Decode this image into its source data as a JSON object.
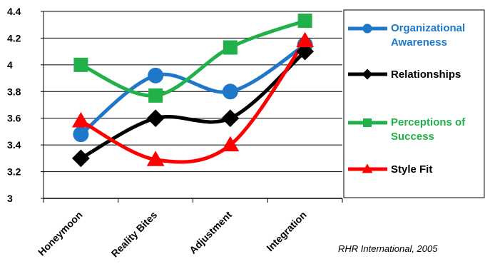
{
  "chart_data": {
    "type": "line",
    "categories": [
      "Honeymoon",
      "Reality Bites",
      "Adjustment",
      "Integration"
    ],
    "ylim": [
      3,
      4.4
    ],
    "y_ticks": [
      "3",
      "3.2",
      "3.4",
      "3.6",
      "3.8",
      "4",
      "4.2",
      "4.4"
    ],
    "grid": true,
    "smooth": true,
    "legend_position": "right",
    "series": [
      {
        "name": "Organizational Awareness",
        "name_lines": [
          "Organizational",
          "Awareness"
        ],
        "color": "#1f77c9",
        "marker": "circle",
        "values": [
          3.48,
          3.92,
          3.8,
          4.15
        ]
      },
      {
        "name": "Relationships",
        "name_lines": [
          "Relationships"
        ],
        "color": "#000000",
        "label_color": "#000000",
        "marker": "diamond",
        "values": [
          3.3,
          3.6,
          3.6,
          4.1
        ]
      },
      {
        "name": "Perceptions of Success",
        "name_lines": [
          "Perceptions of",
          "Success"
        ],
        "color": "#22b04b",
        "marker": "square",
        "values": [
          4.0,
          3.77,
          4.13,
          4.33
        ]
      },
      {
        "name": "Style Fit",
        "name_lines": [
          "Style Fit"
        ],
        "color": "#ff0000",
        "label_color": "#000000",
        "marker": "triangle",
        "values": [
          3.58,
          3.29,
          3.4,
          4.18
        ]
      }
    ],
    "annotation": "RHR International, 2005"
  }
}
